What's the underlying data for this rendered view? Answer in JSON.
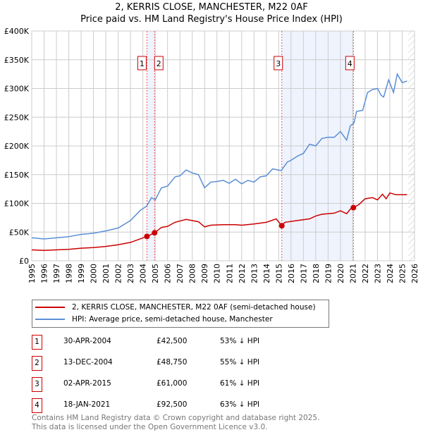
{
  "title": "2, KERRIS CLOSE, MANCHESTER, M22 0AF",
  "subtitle": "Price paid vs. HM Land Registry's House Price Index (HPI)",
  "chart_data": {
    "type": "line",
    "title": "2, KERRIS CLOSE, MANCHESTER, M22 0AF — Price paid vs. HM Land Registry's House Price Index (HPI)",
    "xlim": [
      1995,
      2026
    ],
    "ylim": [
      0,
      400000
    ],
    "xticks": [
      "1995",
      "1996",
      "1997",
      "1998",
      "1999",
      "2000",
      "2001",
      "2002",
      "2003",
      "2004",
      "2005",
      "2006",
      "2007",
      "2008",
      "2009",
      "2010",
      "2011",
      "2012",
      "2013",
      "2014",
      "2015",
      "2016",
      "2017",
      "2018",
      "2019",
      "2020",
      "2021",
      "2022",
      "2023",
      "2024",
      "2025",
      "2026"
    ],
    "yticks": [
      {
        "v": 0,
        "label": "£0"
      },
      {
        "v": 50000,
        "label": "£50K"
      },
      {
        "v": 100000,
        "label": "£100K"
      },
      {
        "v": 150000,
        "label": "£150K"
      },
      {
        "v": 200000,
        "label": "£200K"
      },
      {
        "v": 250000,
        "label": "£250K"
      },
      {
        "v": 300000,
        "label": "£300K"
      },
      {
        "v": 350000,
        "label": "£350K"
      },
      {
        "v": 400000,
        "label": "£400K"
      }
    ],
    "grid": true,
    "series": [
      {
        "name": "2, KERRIS CLOSE, MANCHESTER, M22 0AF (semi-detached house)",
        "color": "#cc0000",
        "x": [
          1995,
          1996,
          1997,
          1998,
          1999,
          2000,
          2001,
          2002,
          2003,
          2004.33,
          2004.95,
          2005.5,
          2006,
          2006.6,
          2007.5,
          2008.5,
          2009,
          2009.5,
          2010.5,
          2011.5,
          2012,
          2013,
          2014,
          2014.8,
          2015.25,
          2015.5,
          2016.5,
          2017.5,
          2018,
          2018.5,
          2019.5,
          2020,
          2020.5,
          2020.8,
          2021.05,
          2021.5,
          2022,
          2022.6,
          2023,
          2023.4,
          2023.7,
          2024,
          2024.5,
          2025.4
        ],
        "y": [
          19000,
          18000,
          19000,
          20000,
          22000,
          23000,
          25000,
          28000,
          32000,
          42500,
          48750,
          58000,
          60000,
          67000,
          72000,
          68000,
          59000,
          62000,
          63000,
          63000,
          62000,
          64000,
          67000,
          73000,
          61000,
          67000,
          70000,
          73000,
          78000,
          81000,
          83000,
          87000,
          82000,
          90000,
          92500,
          98000,
          108000,
          110000,
          106000,
          116000,
          108000,
          118000,
          115000,
          115000
        ]
      },
      {
        "name": "HPI: Average price, semi-detached house, Manchester",
        "color": "#5b8fd4",
        "x": [
          1995,
          1996,
          1997,
          1998,
          1999,
          2000,
          2001,
          2002,
          2003,
          2003.8,
          2004.3,
          2004.7,
          2005,
          2005.5,
          2006,
          2006.6,
          2007,
          2007.5,
          2008,
          2008.5,
          2009,
          2009.5,
          2010,
          2010.5,
          2011,
          2011.5,
          2012,
          2012.5,
          2013,
          2013.5,
          2014,
          2014.5,
          2015.2,
          2015.7,
          2016,
          2016.5,
          2017,
          2017.5,
          2018,
          2018.5,
          2019,
          2019.5,
          2020,
          2020.5,
          2020.8,
          2021.1,
          2021.3,
          2021.8,
          2022.2,
          2022.6,
          2023,
          2023.3,
          2023.5,
          2023.9,
          2024.3,
          2024.6,
          2025,
          2025.4
        ],
        "y": [
          40000,
          38000,
          40000,
          42000,
          46000,
          48000,
          52000,
          57000,
          70000,
          88000,
          95000,
          110000,
          106000,
          127000,
          130000,
          146000,
          148000,
          158000,
          153000,
          150000,
          127000,
          137000,
          138000,
          140000,
          135000,
          142000,
          134000,
          140000,
          137000,
          146000,
          148000,
          160000,
          157000,
          172000,
          175000,
          182000,
          187000,
          203000,
          200000,
          213000,
          215000,
          215000,
          225000,
          210000,
          235000,
          240000,
          260000,
          262000,
          293000,
          298000,
          300000,
          288000,
          285000,
          315000,
          293000,
          325000,
          310000,
          313000
        ]
      }
    ],
    "sales": [
      {
        "id": "1",
        "x": 2004.33,
        "date": "30-APR-2004",
        "price": "£42,500",
        "value": 42500,
        "hpi": "53% ↓ HPI"
      },
      {
        "id": "2",
        "x": 2004.95,
        "date": "13-DEC-2004",
        "price": "£48,750",
        "value": 48750,
        "hpi": "55% ↓ HPI"
      },
      {
        "id": "3",
        "x": 2015.25,
        "date": "02-APR-2015",
        "price": "£61,000",
        "value": 61000,
        "hpi": "61% ↓ HPI"
      },
      {
        "id": "4",
        "x": 2021.05,
        "date": "18-JAN-2021",
        "price": "£92,500",
        "value": 92500,
        "hpi": "63% ↓ HPI"
      }
    ],
    "forecast_from": 2025.5,
    "legend_placement": "bottom"
  },
  "footer": [
    "Contains HM Land Registry data © Crown copyright and database right 2025.",
    "This data is licensed under the Open Government Licence v3.0."
  ]
}
